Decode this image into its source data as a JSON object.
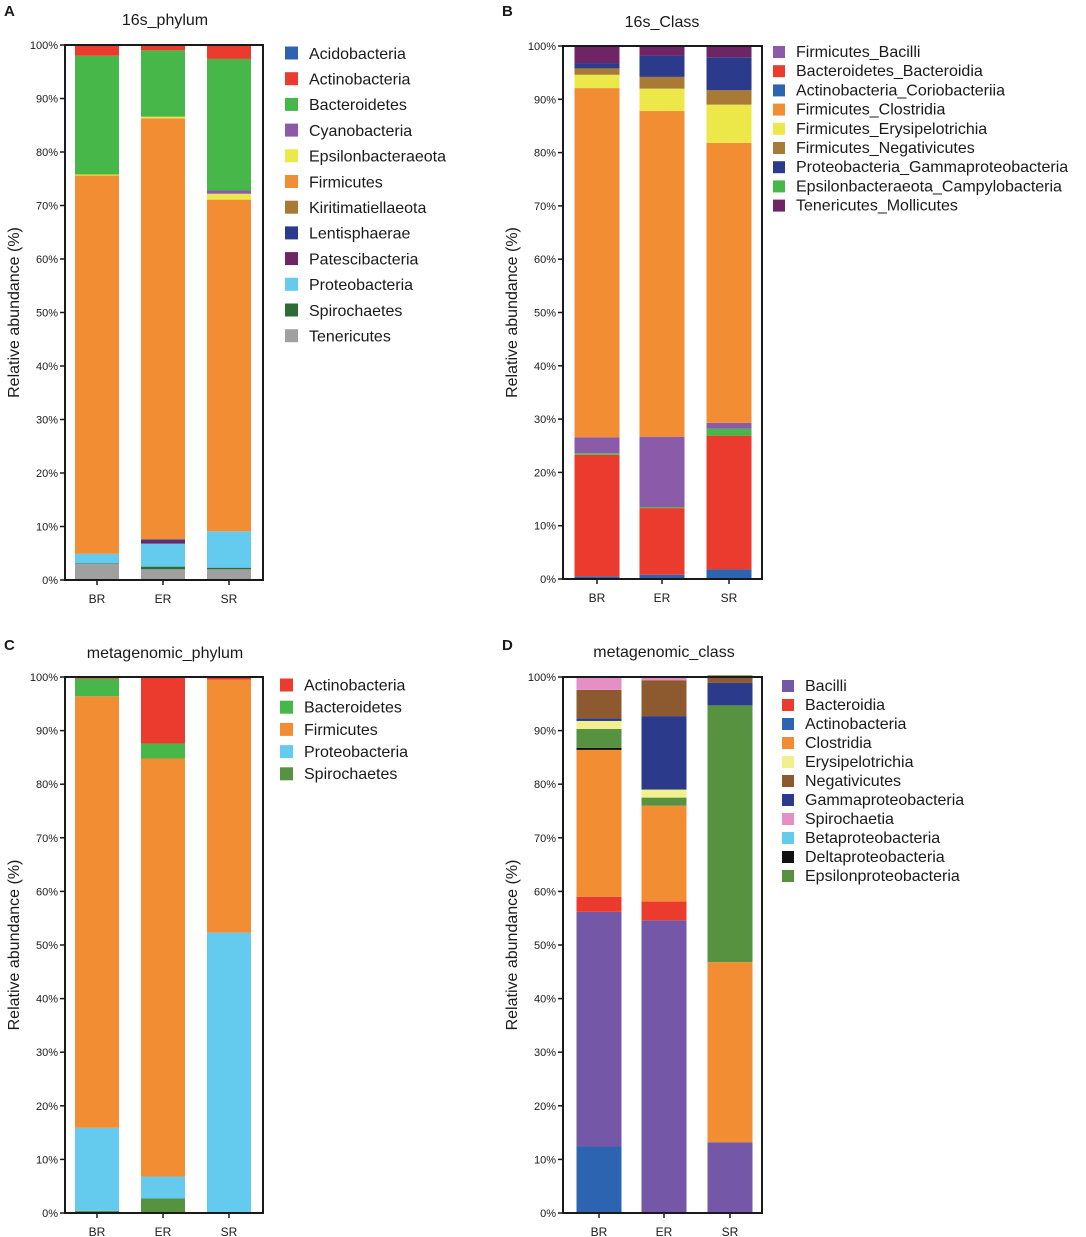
{
  "figure": {
    "panel_count": 4
  },
  "chart_data": [
    {
      "type": "bar",
      "stacked": true,
      "panel": "A",
      "title": "16s_phylum",
      "ylabel": "Relative abundance (%)",
      "xlabel": "",
      "categories": [
        "BR",
        "ER",
        "SR"
      ],
      "ylim": [
        0,
        100
      ],
      "yticks": [
        "0%",
        "10%",
        "20%",
        "30%",
        "40%",
        "50%",
        "60%",
        "70%",
        "80%",
        "90%",
        "100%"
      ],
      "legend_position": "right",
      "series": [
        {
          "name": "Tenericutes",
          "color": "#a0a0a0",
          "values": [
            3.0,
            2.0,
            2.0
          ]
        },
        {
          "name": "Spirochaetes",
          "color": "#2e6b35",
          "values": [
            0.1,
            0.5,
            0.3
          ]
        },
        {
          "name": "Proteobacteria",
          "color": "#64cbef",
          "values": [
            1.8,
            4.3,
            6.8
          ]
        },
        {
          "name": "Patescibacteria",
          "color": "#6e2465",
          "values": [
            0,
            0.5,
            0
          ]
        },
        {
          "name": "Lentisphaerae",
          "color": "#2b3a8a",
          "values": [
            0,
            0.3,
            0
          ]
        },
        {
          "name": "Kiritimatiellaeota",
          "color": "#a87a36",
          "values": [
            0,
            0,
            0
          ]
        },
        {
          "name": "Firmicutes",
          "color": "#f28d34",
          "values": [
            70.7,
            78.7,
            62.0
          ]
        },
        {
          "name": "Epsilonbacteraeota",
          "color": "#ece84a",
          "values": [
            0.2,
            0.3,
            1.1
          ]
        },
        {
          "name": "Cyanobacteria",
          "color": "#8b5aa8",
          "values": [
            0,
            0,
            0.6
          ]
        },
        {
          "name": "Bacteroidetes",
          "color": "#47b74a",
          "values": [
            22.2,
            12.4,
            24.6
          ]
        },
        {
          "name": "Actinobacteria",
          "color": "#eb3a2e",
          "values": [
            2.0,
            1.0,
            2.6
          ]
        },
        {
          "name": "Acidobacteria",
          "color": "#2d64b2",
          "values": [
            0,
            0,
            0
          ]
        }
      ],
      "legend": [
        "Acidobacteria",
        "Actinobacteria",
        "Bacteroidetes",
        "Cyanobacteria",
        "Epsilonbacteraeota",
        "Firmicutes",
        "Kiritimatiellaeota",
        "Lentisphaerae",
        "Patescibacteria",
        "Proteobacteria",
        "Spirochaetes",
        "Tenericutes"
      ]
    },
    {
      "type": "bar",
      "stacked": true,
      "panel": "B",
      "title": "16s_Class",
      "ylabel": "Relative abundance (%)",
      "xlabel": "",
      "categories": [
        "BR",
        "ER",
        "SR"
      ],
      "ylim": [
        0,
        100
      ],
      "yticks": [
        "0%",
        "10%",
        "20%",
        "30%",
        "40%",
        "50%",
        "60%",
        "70%",
        "80%",
        "90%",
        "100%"
      ],
      "legend_position": "right",
      "series": [
        {
          "name": "Actinobacteria_Coriobacteriia",
          "color": "#2d64b2",
          "values": [
            0.5,
            0.8,
            1.8
          ]
        },
        {
          "name": "Bacteroidetes_Bacteroidia",
          "color": "#eb3a2e",
          "values": [
            22.8,
            12.5,
            25.1
          ]
        },
        {
          "name": "Epsilonbacteraeota_Campylobacteria",
          "color": "#47b74a",
          "values": [
            0.3,
            0.2,
            1.3
          ]
        },
        {
          "name": "Firmicutes_Bacilli",
          "color": "#8b5aa8",
          "values": [
            3.0,
            13.2,
            1.1
          ]
        },
        {
          "name": "Firmicutes_Clostridia",
          "color": "#f28d34",
          "values": [
            65.5,
            61.1,
            52.5
          ]
        },
        {
          "name": "Firmicutes_Erysipelotrichia",
          "color": "#ece84a",
          "values": [
            2.5,
            4.2,
            7.2
          ]
        },
        {
          "name": "Firmicutes_Negativicutes",
          "color": "#a87a36",
          "values": [
            1.2,
            2.2,
            2.7
          ]
        },
        {
          "name": "Proteobacteria_Gammaproteobacteria",
          "color": "#2b3a8a",
          "values": [
            1.0,
            4.0,
            6.2
          ]
        },
        {
          "name": "Tenericutes_Mollicutes",
          "color": "#6e2465",
          "values": [
            3.2,
            1.8,
            2.1
          ]
        }
      ],
      "legend": [
        "Firmicutes_Bacilli",
        "Bacteroidetes_Bacteroidia",
        "Actinobacteria_Coriobacteriia",
        "Firmicutes_Clostridia",
        "Firmicutes_Erysipelotrichia",
        "Firmicutes_Negativicutes",
        "Proteobacteria_Gammaproteobacteria",
        "Epsilonbacteraeota_Campylobacteria",
        "Tenericutes_Mollicutes"
      ]
    },
    {
      "type": "bar",
      "stacked": true,
      "panel": "C",
      "title": "metagenomic_phylum",
      "ylabel": "Relative abundance (%)",
      "xlabel": "",
      "categories": [
        "BR",
        "ER",
        "SR"
      ],
      "ylim": [
        0,
        100
      ],
      "yticks": [
        "0%",
        "10%",
        "20%",
        "30%",
        "40%",
        "50%",
        "60%",
        "70%",
        "80%",
        "90%",
        "100%"
      ],
      "legend_position": "right",
      "series": [
        {
          "name": "Spirochaetes",
          "color": "#56923f",
          "values": [
            0.4,
            2.7,
            0
          ]
        },
        {
          "name": "Proteobacteria",
          "color": "#64cbef",
          "values": [
            15.5,
            4.1,
            52.3
          ]
        },
        {
          "name": "Firmicutes",
          "color": "#f28d34",
          "values": [
            80.5,
            78.0,
            47.2
          ]
        },
        {
          "name": "Bacteroidetes",
          "color": "#47b74a",
          "values": [
            3.3,
            2.8,
            0
          ]
        },
        {
          "name": "Actinobacteria",
          "color": "#eb3a2e",
          "values": [
            0.3,
            12.4,
            0.5
          ]
        }
      ],
      "legend": [
        "Actinobacteria",
        "Bacteroidetes",
        "Firmicutes",
        "Proteobacteria",
        "Spirochaetes"
      ]
    },
    {
      "type": "bar",
      "stacked": true,
      "panel": "D",
      "title": "metagenomic_class",
      "ylabel": "Relative abundance (%)",
      "xlabel": "",
      "categories": [
        "BR",
        "ER",
        "SR"
      ],
      "ylim": [
        0,
        100
      ],
      "yticks": [
        "0%",
        "10%",
        "20%",
        "30%",
        "40%",
        "50%",
        "60%",
        "70%",
        "80%",
        "90%",
        "100%"
      ],
      "legend_position": "right",
      "series": [
        {
          "name": "Actinobacteria",
          "color": "#2d64b2",
          "values": [
            12.4,
            0,
            0
          ]
        },
        {
          "name": "Bacilli",
          "color": "#7457a6",
          "values": [
            43.8,
            54.6,
            13.2
          ]
        },
        {
          "name": "Bacteroidia",
          "color": "#eb3a2e",
          "values": [
            2.8,
            3.5,
            0
          ]
        },
        {
          "name": "Clostridia",
          "color": "#f28d34",
          "values": [
            27.4,
            17.9,
            33.6
          ]
        },
        {
          "name": "Deltaproteobacteria",
          "color": "#111111",
          "values": [
            0.4,
            0,
            0
          ]
        },
        {
          "name": "Epsilonproteobacteria",
          "color": "#56923f",
          "values": [
            3.5,
            1.5,
            47.9
          ]
        },
        {
          "name": "Erysipelotrichia",
          "color": "#f2ef8e",
          "values": [
            1.5,
            1.5,
            0
          ]
        },
        {
          "name": "Gammaproteobacteria",
          "color": "#2b3a8a",
          "values": [
            0.5,
            13.7,
            4.2
          ]
        },
        {
          "name": "Negativicutes",
          "color": "#8c5a2e",
          "values": [
            5.3,
            6.7,
            1.4
          ]
        },
        {
          "name": "Spirochaetia",
          "color": "#e68fc6",
          "values": [
            2.5,
            0.5,
            0
          ]
        }
      ],
      "legend": [
        "Bacilli",
        "Bacteroidia",
        "Actinobacteria",
        "Clostridia",
        "Erysipelotrichia",
        "Negativicutes",
        "Gammaproteobacteria",
        "Spirochaetia",
        "Betaproteobacteria",
        "Deltaproteobacteria",
        "Epsilonproteobacteria"
      ],
      "legend_colors": {
        "Betaproteobacteria": "#64cbef"
      }
    }
  ]
}
